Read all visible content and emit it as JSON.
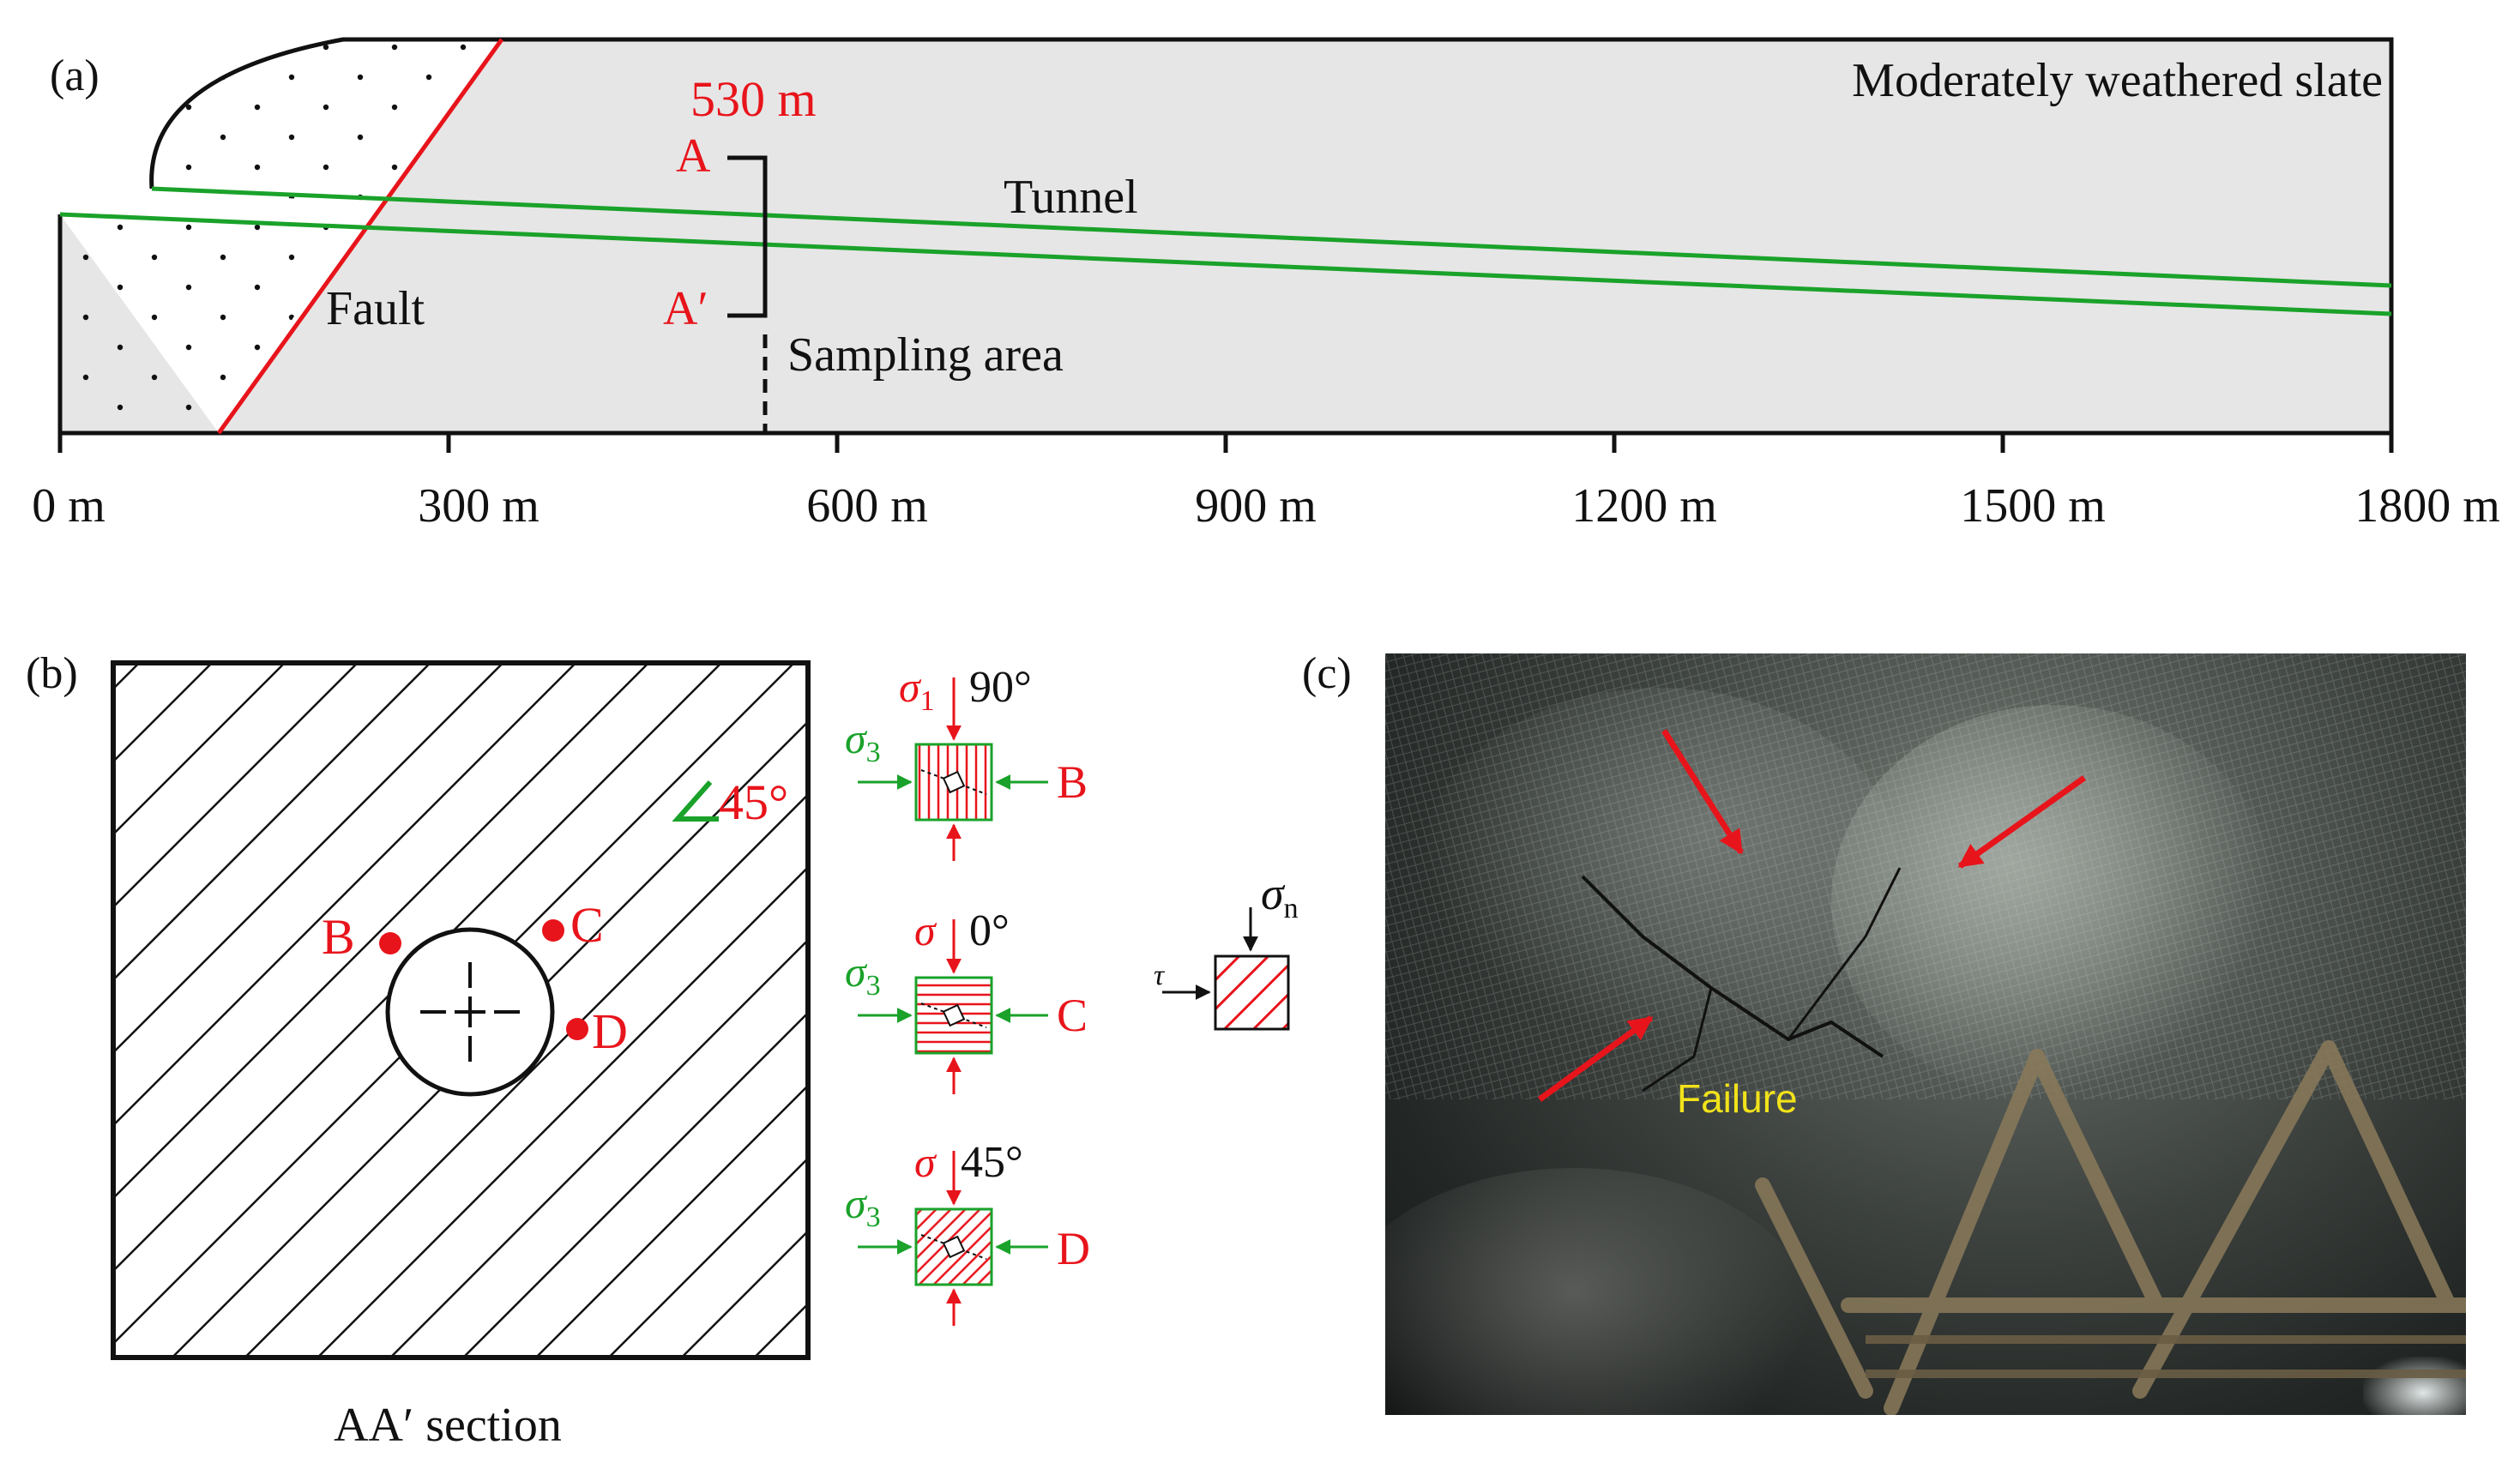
{
  "panel_a": {
    "label": "(a)",
    "depth_label": "530 m",
    "point_a": "A",
    "point_a_prime": "A′",
    "rock_label": "Moderately weathered slate",
    "tunnel_label": "Tunnel",
    "fault_label": "Fault",
    "sampling_label": "Sampling area",
    "axis_ticks": [
      "0 m",
      "300 m",
      "600 m",
      "900 m",
      "1200 m",
      "1500 m",
      "1800 m"
    ],
    "colors": {
      "fault": "#e8141b",
      "tunnel": "#1aa22a",
      "rock_fill": "#e6e6e6",
      "labels_red": "#e8141b"
    }
  },
  "panel_b": {
    "label": "(b)",
    "angle_label": "45°",
    "section_label": "AA′ section",
    "points": [
      "B",
      "C",
      "D"
    ],
    "stress_blocks": [
      {
        "sigma": "σ",
        "sigma_sub": "1",
        "angle": "90°",
        "side_sigma": "σ",
        "side_sub": "3",
        "point": "B"
      },
      {
        "sigma": "σ",
        "sigma_sub": "",
        "angle": "0°",
        "side_sigma": "σ",
        "side_sub": "3",
        "point": "C"
      },
      {
        "sigma": "σ",
        "sigma_sub": "",
        "angle": "45°",
        "side_sigma": "σ",
        "side_sub": "3",
        "point": "D"
      }
    ],
    "shear_sigma": "σ",
    "shear_sigma_sub": "n",
    "shear_tau": "τ"
  },
  "panel_c": {
    "label": "(c)",
    "failure_label": "Failure",
    "colors": {
      "arrows": "#e8141b",
      "failure_text": "#f2e21a"
    }
  }
}
